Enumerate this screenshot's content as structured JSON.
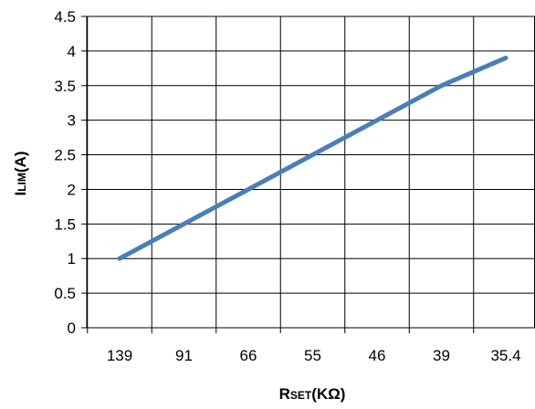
{
  "chart_data": {
    "type": "line",
    "categories": [
      "139",
      "91",
      "66",
      "55",
      "46",
      "39",
      "35.4"
    ],
    "series": [
      {
        "values": [
          1,
          1.5,
          2,
          2.5,
          3,
          3.5,
          3.9
        ]
      }
    ],
    "ylim": [
      0,
      4.5
    ],
    "yticks": [
      "0",
      "0.5",
      "1",
      "1.5",
      "2",
      "2.5",
      "3",
      "3.5",
      "4",
      "4.5"
    ],
    "xlabel": {
      "main": "R",
      "sub": "SET",
      "unit": "(KΩ)"
    },
    "ylabel": {
      "main": "I",
      "sub": "LIM",
      "unit": "(A)"
    },
    "grid": true,
    "legend": "none",
    "colors": {
      "line": "#4a7ebb",
      "grid": "#000000",
      "frame": "#000000"
    }
  }
}
